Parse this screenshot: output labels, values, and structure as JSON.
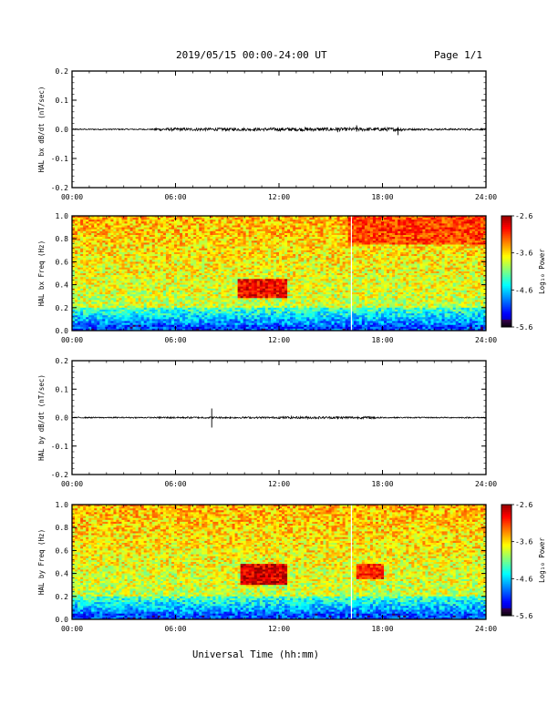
{
  "header": {
    "title": "2019/05/15  00:00-24:00 UT",
    "page": "Page 1/1"
  },
  "xlabel": "Universal Time (hh:mm)",
  "chart_data": [
    {
      "type": "line",
      "ylabel": "HAL bx dB/dt (nT/sec)",
      "xlim": [
        0,
        24
      ],
      "ylim": [
        -0.2,
        0.2
      ],
      "xticks": [
        "00:00",
        "06:00",
        "12:00",
        "18:00",
        "24:00"
      ],
      "yticks": [
        "0.2",
        "0.1",
        "0.0",
        "-0.1",
        "-0.2"
      ],
      "baseline": 0.0,
      "noise_bands": [
        {
          "x": [
            0,
            4.8
          ],
          "amp": 0.002
        },
        {
          "x": [
            4.8,
            11.5
          ],
          "amp": 0.005
        },
        {
          "x": [
            11.5,
            19.5
          ],
          "amp": 0.006
        },
        {
          "x": [
            19.5,
            24
          ],
          "amp": 0.003
        }
      ],
      "spikes": [
        {
          "x": 16.5,
          "y": [
            -0.008,
            0.014
          ]
        },
        {
          "x": 18.9,
          "y": [
            -0.02,
            0.008
          ]
        },
        {
          "x": 15.4,
          "y": [
            -0.01,
            0.006
          ]
        }
      ]
    },
    {
      "type": "heatmap",
      "ylabel": "HAL bx Freq (Hz)",
      "xlim": [
        0,
        24
      ],
      "ylim": [
        0.0,
        1.0
      ],
      "xticks": [
        "00:00",
        "06:00",
        "12:00",
        "18:00",
        "24:00"
      ],
      "yticks": [
        "1.0",
        "0.8",
        "0.6",
        "0.4",
        "0.2",
        "0.0"
      ],
      "colorbar": {
        "label": "Log₁₀ Power",
        "range": [
          -5.6,
          -2.6
        ],
        "ticks": [
          "-2.6",
          "-3.6",
          "-4.6",
          "-5.6"
        ]
      },
      "features": [
        {
          "x": [
            9.6,
            12.4
          ],
          "f": [
            0.28,
            0.45
          ],
          "power": -2.9
        },
        {
          "x": [
            16.0,
            24.0
          ],
          "f": [
            0.75,
            1.0
          ],
          "power": -3.1
        }
      ],
      "gap_x": 16.2
    },
    {
      "type": "line",
      "ylabel": "HAL by dB/dt (nT/sec)",
      "xlim": [
        0,
        24
      ],
      "ylim": [
        -0.2,
        0.2
      ],
      "xticks": [
        "00:00",
        "06:00",
        "12:00",
        "18:00",
        "24:00"
      ],
      "yticks": [
        "0.2",
        "0.1",
        "0.0",
        "-0.1",
        "-0.2"
      ],
      "baseline": 0.0,
      "noise_bands": [
        {
          "x": [
            0,
            5.0
          ],
          "amp": 0.002
        },
        {
          "x": [
            5.0,
            12.0
          ],
          "amp": 0.003
        },
        {
          "x": [
            12.0,
            18.0
          ],
          "amp": 0.004
        },
        {
          "x": [
            18.0,
            24
          ],
          "amp": 0.002
        }
      ],
      "spikes": [
        {
          "x": 8.1,
          "y": [
            -0.035,
            0.032
          ]
        },
        {
          "x": 15.4,
          "y": [
            -0.006,
            0.004
          ]
        }
      ]
    },
    {
      "type": "heatmap",
      "ylabel": "HAL by Freq (Hz)",
      "xlim": [
        0,
        24
      ],
      "ylim": [
        0.0,
        1.0
      ],
      "xticks": [
        "00:00",
        "06:00",
        "12:00",
        "18:00",
        "24:00"
      ],
      "yticks": [
        "1.0",
        "0.8",
        "0.6",
        "0.4",
        "0.2",
        "0.0"
      ],
      "colorbar": {
        "label": "Log₁₀ Power",
        "range": [
          -5.6,
          -2.6
        ],
        "ticks": [
          "-2.6",
          "-3.6",
          "-4.6",
          "-5.6"
        ]
      },
      "features": [
        {
          "x": [
            9.8,
            12.5
          ],
          "f": [
            0.3,
            0.48
          ],
          "power": -2.8
        },
        {
          "x": [
            16.5,
            18.0
          ],
          "f": [
            0.35,
            0.48
          ],
          "power": -3.0
        }
      ],
      "gap_x": 16.2
    }
  ]
}
